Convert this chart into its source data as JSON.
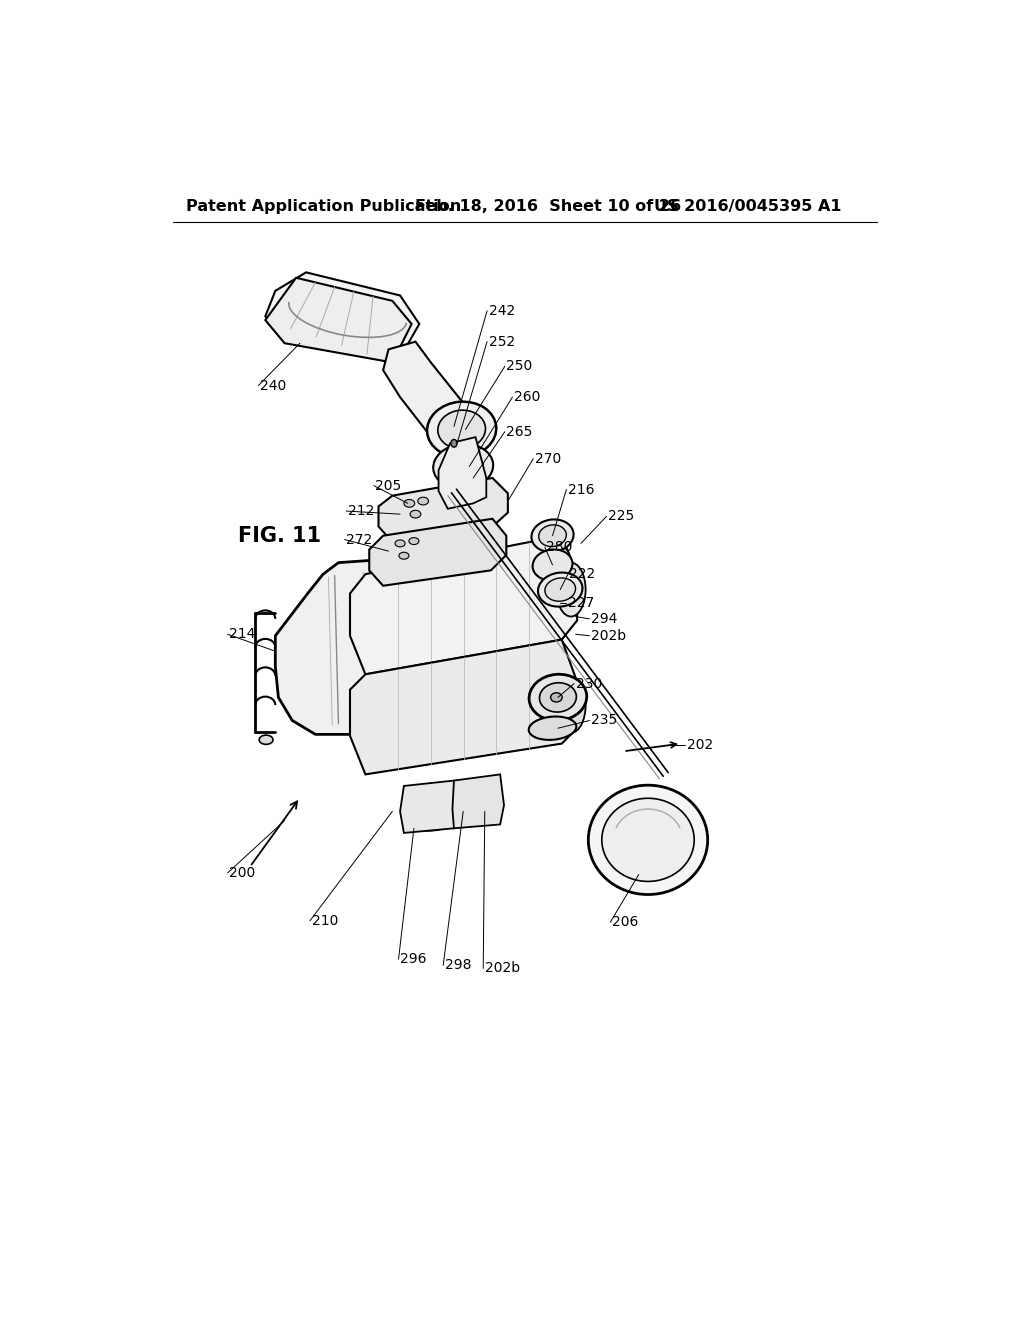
{
  "header_left": "Patent Application Publication",
  "header_mid": "Feb. 18, 2016  Sheet 10 of 26",
  "header_right": "US 2016/0045395 A1",
  "fig_label": "FIG. 11",
  "background_color": "#ffffff",
  "text_color": "#000000",
  "line_color": "#000000",
  "header_fontsize": 11.5,
  "label_fontsize": 10,
  "fig_fontsize": 15
}
